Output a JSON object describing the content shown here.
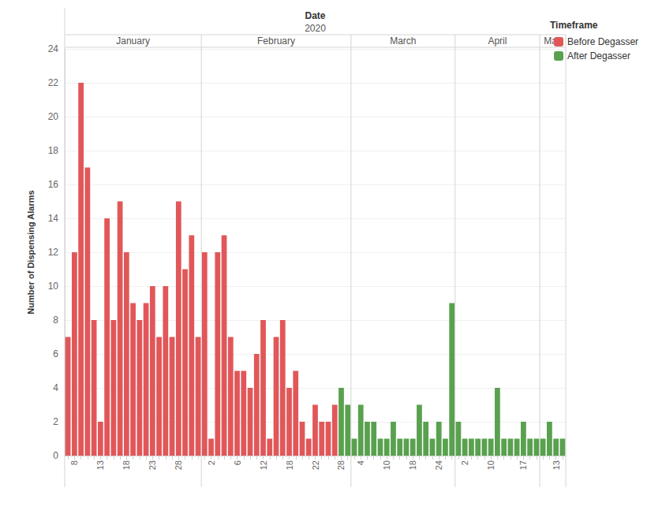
{
  "chart_data": {
    "type": "bar",
    "xlabel": "Date",
    "year": "2020",
    "ylabel": "Number of Dispensing Alarms",
    "legend_title": "Timeframe",
    "legend": "top-right",
    "grid": true,
    "ylim": [
      0,
      24
    ],
    "yticks": [
      0,
      2,
      4,
      6,
      8,
      10,
      12,
      14,
      16,
      18,
      20,
      22,
      24
    ],
    "months": [
      {
        "label": "January",
        "first": 0,
        "last": 20
      },
      {
        "label": "February",
        "first": 21,
        "last": 43
      },
      {
        "label": "March",
        "first": 44,
        "last": 59
      },
      {
        "label": "April",
        "first": 60,
        "last": 72
      },
      {
        "label": "May",
        "first": 73,
        "last": 76
      }
    ],
    "categories": [
      null,
      "8",
      null,
      null,
      null,
      "13",
      null,
      null,
      null,
      "18",
      null,
      null,
      null,
      "23",
      null,
      null,
      null,
      "28",
      null,
      null,
      null,
      null,
      "2",
      null,
      null,
      null,
      "6",
      null,
      null,
      null,
      "12",
      null,
      null,
      null,
      "18",
      null,
      null,
      null,
      "22",
      null,
      null,
      null,
      "28",
      null,
      null,
      "4",
      null,
      null,
      null,
      "10",
      null,
      null,
      null,
      "18",
      null,
      null,
      null,
      "24",
      null,
      null,
      null,
      "2",
      null,
      null,
      null,
      "10",
      null,
      null,
      null,
      null,
      "17",
      null,
      null,
      null,
      null,
      "13",
      null
    ],
    "series": [
      {
        "name": "Before Degasser",
        "color": "#e15759",
        "values": [
          7,
          12,
          22,
          17,
          8,
          2,
          14,
          8,
          15,
          12,
          9,
          8,
          9,
          10,
          7,
          10,
          7,
          15,
          11,
          13,
          7,
          12,
          1,
          12,
          13,
          7,
          5,
          5,
          4,
          6,
          8,
          1,
          7,
          8,
          4,
          5,
          2,
          1,
          3,
          2,
          2,
          3,
          null,
          null,
          null,
          null,
          null,
          null,
          null,
          null,
          null,
          null,
          null,
          null,
          null,
          null,
          null,
          null,
          null,
          null,
          null,
          null,
          null,
          null,
          null,
          null,
          null,
          null,
          null,
          null,
          null,
          null,
          null,
          null,
          null,
          null,
          null
        ]
      },
      {
        "name": "After Degasser",
        "color": "#59a14f",
        "values": [
          null,
          null,
          null,
          null,
          null,
          null,
          null,
          null,
          null,
          null,
          null,
          null,
          null,
          null,
          null,
          null,
          null,
          null,
          null,
          null,
          null,
          null,
          null,
          null,
          null,
          null,
          null,
          null,
          null,
          null,
          null,
          null,
          null,
          null,
          null,
          null,
          null,
          null,
          null,
          null,
          null,
          null,
          4,
          3,
          1,
          3,
          2,
          2,
          1,
          1,
          2,
          1,
          1,
          1,
          3,
          2,
          1,
          2,
          1,
          9,
          2,
          1,
          1,
          1,
          1,
          1,
          4,
          1,
          1,
          1,
          2,
          1,
          1,
          1,
          2,
          1,
          1
        ]
      }
    ]
  }
}
